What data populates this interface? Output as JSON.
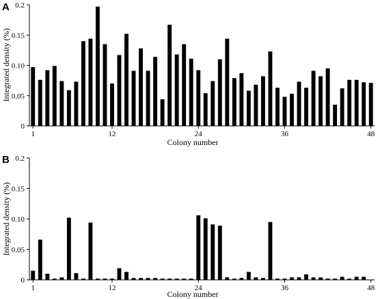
{
  "chart_data": [
    {
      "panel": "A",
      "type": "bar",
      "xlabel": "Colony number",
      "ylabel": "Integrated density (%)",
      "ylim": [
        0,
        0.2
      ],
      "yticks": [
        0,
        0.05,
        0.1,
        0.15,
        0.2
      ],
      "ytick_labels": [
        "0",
        "0.05",
        "0.10",
        "0.15",
        "0.2"
      ],
      "xticks": [
        1,
        12,
        24,
        36,
        48
      ],
      "xtick_labels": [
        "1",
        "12",
        "24",
        "36",
        "48"
      ],
      "x": [
        1,
        2,
        3,
        4,
        5,
        6,
        7,
        8,
        9,
        10,
        11,
        12,
        13,
        14,
        15,
        16,
        17,
        18,
        19,
        20,
        21,
        22,
        23,
        24,
        25,
        26,
        27,
        28,
        29,
        30,
        31,
        32,
        33,
        34,
        35,
        36,
        37,
        38,
        39,
        40,
        41,
        42,
        43,
        44,
        45,
        46,
        47,
        48
      ],
      "values": [
        0.097,
        0.076,
        0.092,
        0.099,
        0.074,
        0.059,
        0.073,
        0.14,
        0.144,
        0.197,
        0.135,
        0.07,
        0.117,
        0.152,
        0.091,
        0.128,
        0.091,
        0.114,
        0.044,
        0.167,
        0.118,
        0.135,
        0.111,
        0.092,
        0.054,
        0.074,
        0.11,
        0.144,
        0.079,
        0.087,
        0.058,
        0.068,
        0.082,
        0.123,
        0.063,
        0.048,
        0.053,
        0.073,
        0.063,
        0.091,
        0.082,
        0.095,
        0.035,
        0.062,
        0.076,
        0.076,
        0.072,
        0.071
      ],
      "grid": false,
      "color": "#000000"
    },
    {
      "panel": "B",
      "type": "bar",
      "xlabel": "Colony number",
      "ylabel": "Integrated density (%)",
      "ylim": [
        0,
        0.2
      ],
      "yticks": [
        0,
        0.05,
        0.1,
        0.15,
        0.2
      ],
      "ytick_labels": [
        "0",
        "0.05",
        "0.10",
        "0.15",
        "0.2"
      ],
      "xticks": [
        1,
        12,
        24,
        36,
        48
      ],
      "xtick_labels": [
        "1",
        "12",
        "24",
        "36",
        "48"
      ],
      "x": [
        1,
        2,
        3,
        4,
        5,
        6,
        7,
        8,
        9,
        10,
        11,
        12,
        13,
        14,
        15,
        16,
        17,
        18,
        19,
        20,
        21,
        22,
        23,
        24,
        25,
        26,
        27,
        28,
        29,
        30,
        31,
        32,
        33,
        34,
        35,
        36,
        37,
        38,
        39,
        40,
        41,
        42,
        43,
        44,
        45,
        46,
        47,
        48
      ],
      "values": [
        0.015,
        0.066,
        0.01,
        0.002,
        0.004,
        0.102,
        0.011,
        0.002,
        0.094,
        0.002,
        0.002,
        0.002,
        0.019,
        0.013,
        0.003,
        0.003,
        0.003,
        0.003,
        0.002,
        0.002,
        0.002,
        0.002,
        0.002,
        0.106,
        0.101,
        0.091,
        0.089,
        0.004,
        0.002,
        0.003,
        0.013,
        0.004,
        0.003,
        0.095,
        0.002,
        0.002,
        0.004,
        0.004,
        0.009,
        0.004,
        0.004,
        0.002,
        0.002,
        0.005,
        0.002,
        0.005,
        0.005,
        0.0
      ],
      "grid": false,
      "color": "#000000"
    }
  ]
}
